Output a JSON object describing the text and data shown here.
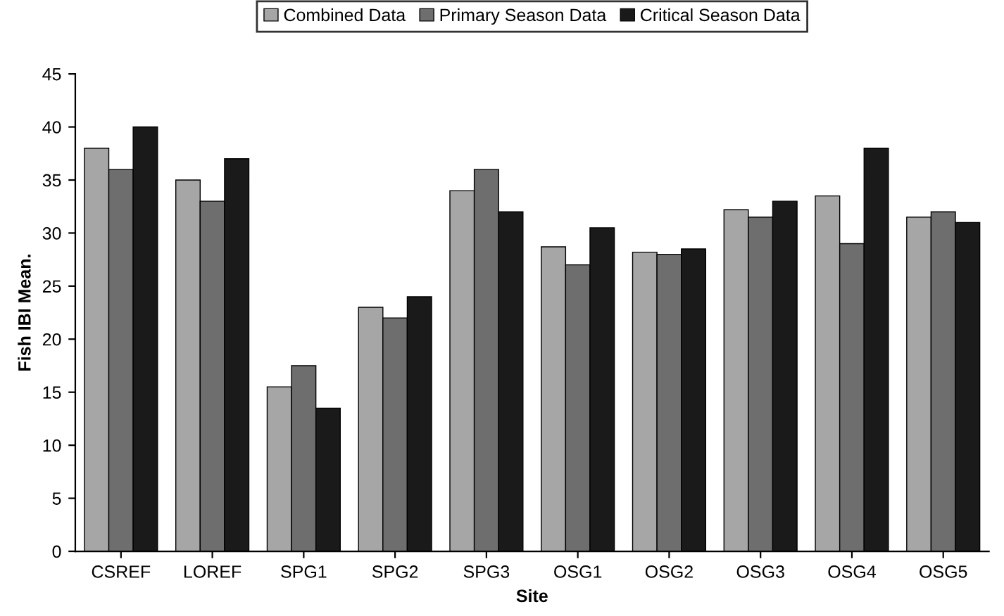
{
  "chart_data": {
    "type": "bar",
    "xlabel": "Site",
    "ylabel": "Fish IBI Mean.",
    "categories": [
      "CSREF",
      "LOREF",
      "SPG1",
      "SPG2",
      "SPG3",
      "OSG1",
      "OSG2",
      "OSG3",
      "OSG4",
      "OSG5"
    ],
    "series": [
      {
        "name": "Combined Data",
        "color": "#a6a6a6",
        "values": [
          38,
          35,
          15.5,
          23,
          34,
          28.7,
          28.2,
          32.2,
          33.5,
          31.5
        ]
      },
      {
        "name": "Primary Season Data",
        "color": "#6e6e6e",
        "values": [
          36,
          33,
          17.5,
          22,
          36,
          27,
          28,
          31.5,
          29,
          32
        ]
      },
      {
        "name": "Critical Season Data",
        "color": "#1a1a1a",
        "values": [
          40,
          37,
          13.5,
          24,
          32,
          30.5,
          28.5,
          33,
          38,
          31
        ]
      }
    ],
    "ylim": [
      0,
      45
    ],
    "yticks": [
      0,
      5,
      10,
      15,
      20,
      25,
      30,
      35,
      40,
      45
    ],
    "grid": false,
    "legend": "top"
  }
}
